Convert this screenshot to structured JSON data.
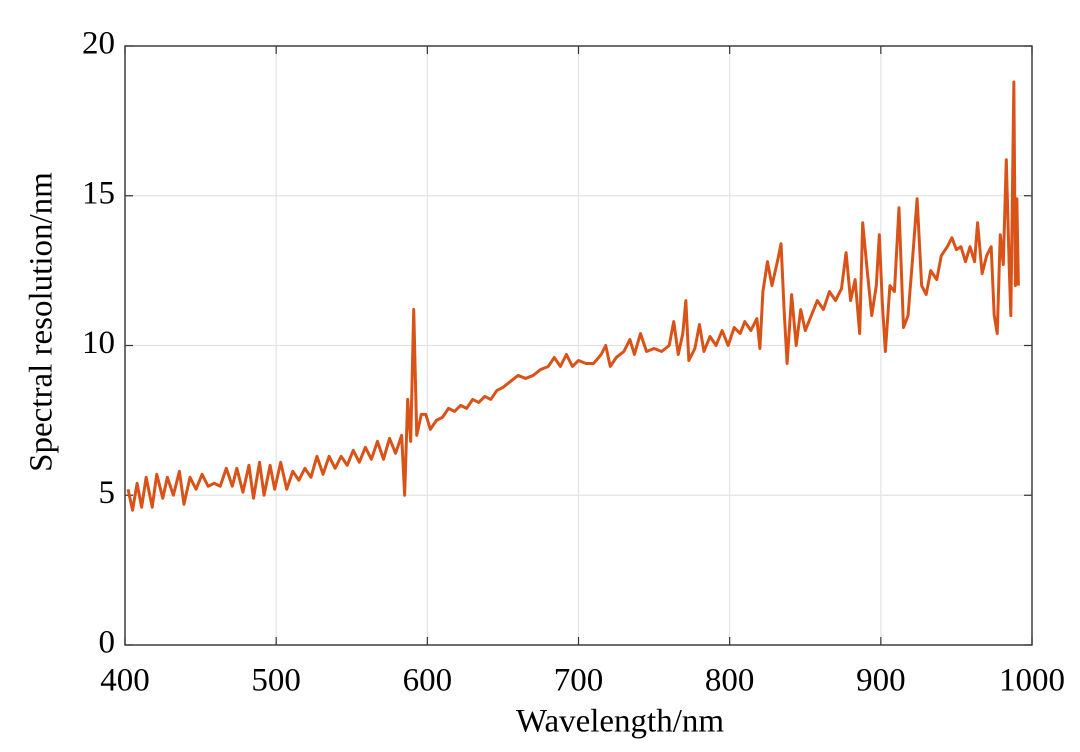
{
  "chart_data": {
    "type": "line",
    "xlabel": "Wavelength/nm",
    "ylabel": "Spectral resolution/nm",
    "color": "#d95319",
    "grid": true,
    "xlim": [
      400,
      1000
    ],
    "xticks": [
      400,
      500,
      600,
      700,
      800,
      900,
      1000
    ],
    "ylim": [
      0,
      20
    ],
    "yticks": [
      0,
      5,
      10,
      15,
      20
    ],
    "x": [
      402,
      405,
      408,
      411,
      414,
      418,
      421,
      425,
      428,
      432,
      436,
      439,
      443,
      447,
      451,
      455,
      459,
      463,
      467,
      471,
      474,
      478,
      482,
      485,
      489,
      492,
      496,
      499,
      503,
      507,
      511,
      515,
      519,
      523,
      527,
      531,
      535,
      539,
      543,
      547,
      551,
      555,
      559,
      563,
      567,
      571,
      575,
      579,
      583,
      585,
      587,
      589,
      591,
      593,
      596,
      599,
      602,
      606,
      610,
      614,
      618,
      622,
      626,
      630,
      634,
      638,
      642,
      646,
      650,
      655,
      660,
      665,
      670,
      675,
      680,
      684,
      688,
      692,
      696,
      700,
      705,
      710,
      715,
      718,
      721,
      725,
      730,
      734,
      737,
      741,
      745,
      750,
      755,
      760,
      763,
      766,
      769,
      771,
      773,
      777,
      780,
      783,
      787,
      791,
      795,
      799,
      803,
      807,
      810,
      814,
      818,
      820,
      822,
      825,
      828,
      832,
      834,
      836,
      838,
      841,
      844,
      847,
      850,
      854,
      858,
      862,
      866,
      870,
      874,
      877,
      880,
      883,
      886,
      888,
      891,
      894,
      897,
      899,
      901,
      903,
      906,
      909,
      912,
      915,
      918,
      921,
      924,
      927,
      930,
      933,
      937,
      940,
      944,
      947,
      950,
      953,
      956,
      959,
      962,
      964,
      967,
      970,
      973,
      975,
      977,
      979,
      981,
      983,
      985,
      986,
      988,
      989,
      990,
      991
    ],
    "values": [
      5.2,
      4.5,
      5.4,
      4.6,
      5.6,
      4.6,
      5.7,
      4.9,
      5.6,
      5.0,
      5.8,
      4.7,
      5.6,
      5.2,
      5.7,
      5.3,
      5.4,
      5.3,
      5.9,
      5.3,
      5.9,
      5.1,
      6.0,
      4.9,
      6.1,
      5.0,
      6.0,
      5.2,
      6.1,
      5.2,
      5.8,
      5.5,
      5.9,
      5.6,
      6.3,
      5.7,
      6.3,
      5.9,
      6.3,
      6.0,
      6.5,
      6.1,
      6.6,
      6.2,
      6.8,
      6.2,
      6.9,
      6.4,
      7.0,
      5.0,
      8.2,
      6.8,
      11.2,
      7.0,
      7.7,
      7.7,
      7.2,
      7.5,
      7.6,
      7.9,
      7.8,
      8.0,
      7.9,
      8.2,
      8.1,
      8.3,
      8.2,
      8.5,
      8.6,
      8.8,
      9.0,
      8.9,
      9.0,
      9.2,
      9.3,
      9.6,
      9.3,
      9.7,
      9.3,
      9.5,
      9.4,
      9.4,
      9.7,
      10.0,
      9.3,
      9.6,
      9.8,
      10.2,
      9.7,
      10.4,
      9.8,
      9.9,
      9.8,
      10.0,
      10.8,
      9.7,
      10.4,
      11.5,
      9.5,
      9.9,
      10.7,
      9.8,
      10.3,
      10.0,
      10.5,
      10.0,
      10.6,
      10.4,
      10.8,
      10.5,
      10.9,
      9.9,
      11.8,
      12.8,
      12.0,
      12.9,
      13.4,
      11.2,
      9.4,
      11.7,
      10.0,
      11.2,
      10.5,
      11.0,
      11.5,
      11.2,
      11.8,
      11.5,
      11.9,
      13.1,
      11.5,
      12.2,
      10.4,
      14.1,
      12.5,
      11.0,
      12.0,
      13.7,
      11.4,
      9.8,
      12.0,
      11.8,
      14.6,
      10.6,
      11.0,
      12.9,
      14.9,
      12.0,
      11.7,
      12.5,
      12.2,
      13.0,
      13.3,
      13.6,
      13.2,
      13.3,
      12.8,
      13.3,
      12.8,
      14.1,
      12.4,
      13.0,
      13.3,
      11.0,
      10.4,
      13.7,
      12.7,
      16.2,
      12.5,
      11.0,
      18.8,
      12.0,
      14.9,
      12.0
    ]
  }
}
